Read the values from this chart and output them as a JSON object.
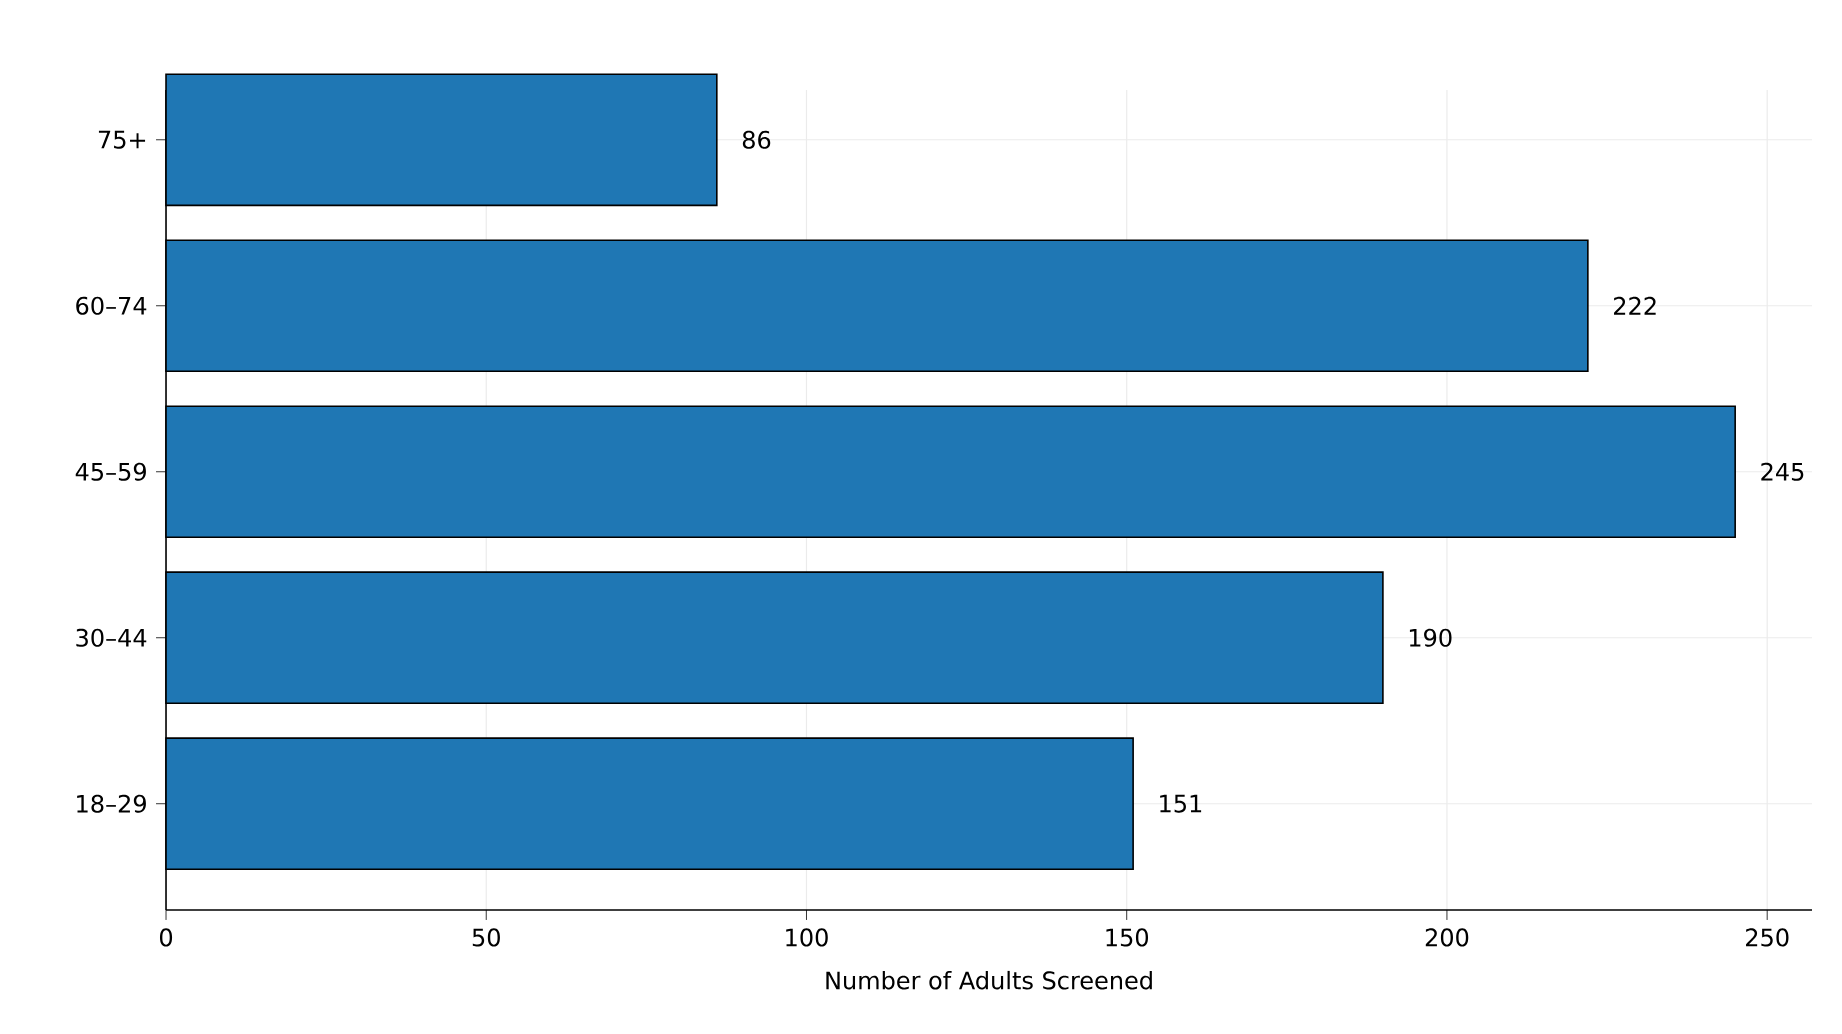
{
  "chart_data": {
    "type": "bar",
    "orientation": "horizontal",
    "xlabel": "Number of Adults Screened",
    "categories": [
      "75+",
      "60–74",
      "45–59",
      "30–44",
      "18–29"
    ],
    "values": [
      86,
      222,
      245,
      190,
      151
    ],
    "color": "#1f77b4",
    "xlim": [
      0,
      257
    ],
    "xticks": [
      0,
      50,
      100,
      150,
      200,
      250
    ],
    "grid": true,
    "data_labels": true
  }
}
